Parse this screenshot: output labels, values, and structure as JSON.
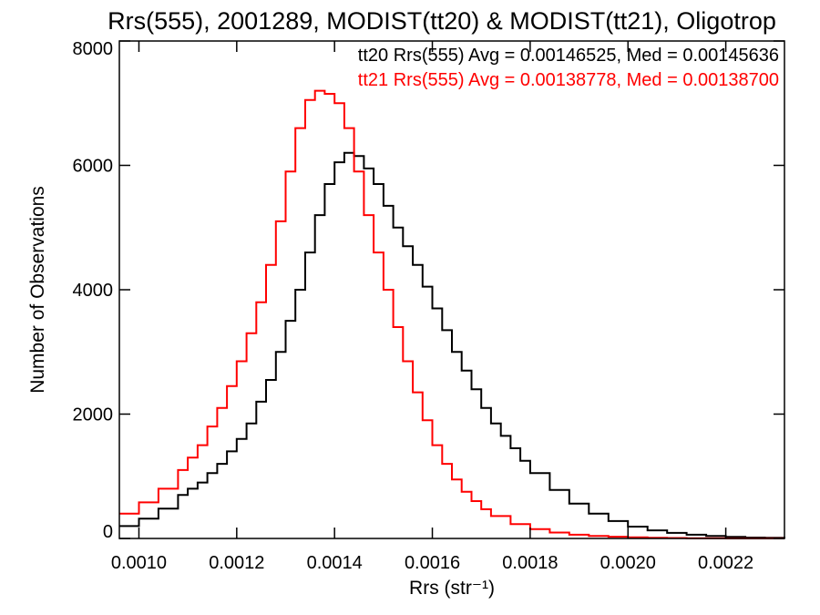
{
  "chart_data": {
    "type": "line",
    "step": true,
    "title": "Rrs(555), 2001289, MODIST(tt20) & MODIST(tt21), Oligotrop",
    "xlabel": "Rrs (str⁻¹)",
    "ylabel": "Number of Observations",
    "xlim": [
      0.00096,
      0.00232
    ],
    "ylim": [
      0,
      8000
    ],
    "x_ticks": [
      {
        "value": 0.001,
        "label": "0.0010"
      },
      {
        "value": 0.0012,
        "label": "0.0012"
      },
      {
        "value": 0.0014,
        "label": "0.0014"
      },
      {
        "value": 0.0016,
        "label": "0.0016"
      },
      {
        "value": 0.0018,
        "label": "0.0018"
      },
      {
        "value": 0.002,
        "label": "0.0020"
      },
      {
        "value": 0.0022,
        "label": "0.0022"
      }
    ],
    "y_ticks": [
      {
        "value": 0,
        "label": "0"
      },
      {
        "value": 2000,
        "label": "2000"
      },
      {
        "value": 4000,
        "label": "4000"
      },
      {
        "value": 6000,
        "label": "6000"
      },
      {
        "value": 8000,
        "label": "8000"
      }
    ],
    "grid": false,
    "legend_position": "top-right",
    "series": [
      {
        "color": "#000000",
        "x": [
          0.00096,
          0.001,
          0.00104,
          0.00108,
          0.0011,
          0.00112,
          0.00114,
          0.00116,
          0.00118,
          0.0012,
          0.00122,
          0.00124,
          0.00126,
          0.00128,
          0.0013,
          0.00132,
          0.00134,
          0.00136,
          0.00138,
          0.0014,
          0.00142,
          0.00144,
          0.00146,
          0.00148,
          0.0015,
          0.00152,
          0.00154,
          0.00156,
          0.00158,
          0.0016,
          0.00162,
          0.00164,
          0.00166,
          0.00168,
          0.0017,
          0.00172,
          0.00174,
          0.00176,
          0.00178,
          0.0018,
          0.00184,
          0.00188,
          0.00192,
          0.00196,
          0.002,
          0.00204,
          0.00208,
          0.00212,
          0.00216,
          0.0022,
          0.00224,
          0.00228,
          0.00232
        ],
        "y": [
          200,
          320,
          480,
          700,
          800,
          900,
          1050,
          1200,
          1400,
          1600,
          1850,
          2200,
          2550,
          3000,
          3500,
          4000,
          4600,
          5200,
          5700,
          6050,
          6200,
          6150,
          5950,
          5700,
          5350,
          5000,
          4700,
          4400,
          4050,
          3700,
          3350,
          3000,
          2700,
          2400,
          2100,
          1850,
          1650,
          1450,
          1250,
          1050,
          780,
          560,
          400,
          280,
          190,
          130,
          90,
          60,
          40,
          25,
          15,
          10,
          5
        ]
      },
      {
        "color": "#ff0000",
        "x": [
          0.00096,
          0.001,
          0.00104,
          0.00108,
          0.0011,
          0.00112,
          0.00114,
          0.00116,
          0.00118,
          0.0012,
          0.00122,
          0.00124,
          0.00126,
          0.00128,
          0.0013,
          0.00132,
          0.00134,
          0.00136,
          0.00138,
          0.0014,
          0.00142,
          0.00144,
          0.00146,
          0.00148,
          0.0015,
          0.00152,
          0.00154,
          0.00156,
          0.00158,
          0.0016,
          0.00162,
          0.00164,
          0.00166,
          0.00168,
          0.0017,
          0.00172,
          0.00176,
          0.0018,
          0.00184,
          0.00188,
          0.00192,
          0.00196,
          0.002,
          0.00204,
          0.00208,
          0.00212,
          0.00216,
          0.0022,
          0.00224,
          0.00228,
          0.00232
        ],
        "y": [
          400,
          580,
          800,
          1100,
          1300,
          1500,
          1800,
          2100,
          2450,
          2850,
          3300,
          3800,
          4400,
          5100,
          5900,
          6600,
          7050,
          7200,
          7150,
          7000,
          6600,
          5900,
          5200,
          4600,
          4000,
          3400,
          2850,
          2350,
          1900,
          1500,
          1200,
          950,
          750,
          600,
          470,
          360,
          230,
          150,
          95,
          60,
          40,
          28,
          18,
          12,
          8,
          5,
          3,
          2,
          2,
          1,
          1
        ]
      }
    ],
    "legend": [
      {
        "text": "tt20 Rrs(555) Avg = 0.00146525, Med = 0.00145636",
        "color": "#000000"
      },
      {
        "text": "tt21 Rrs(555) Avg = 0.00138778, Med = 0.00138700",
        "color": "#ff0000"
      }
    ]
  }
}
